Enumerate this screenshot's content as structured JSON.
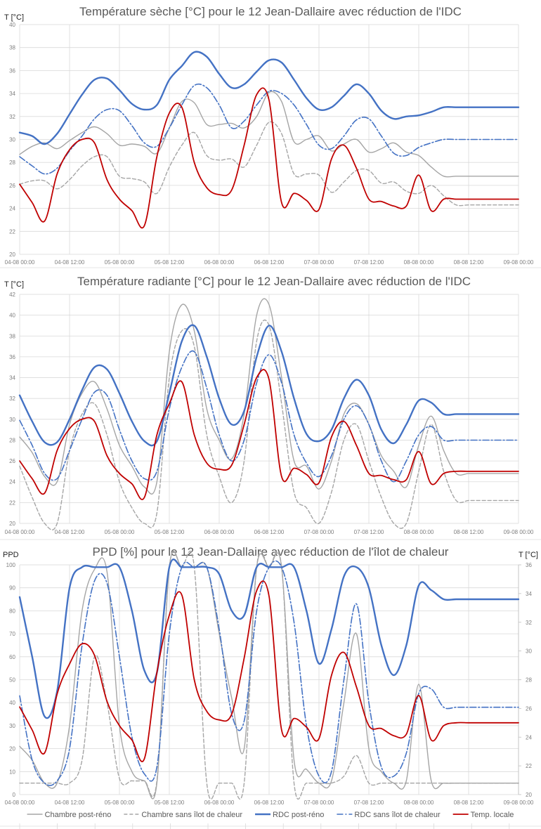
{
  "chart_data": [
    {
      "type": "line",
      "title": "Température sèche [°C] pour le 12 Jean-Dallaire avec réduction de l'IDC",
      "ylabel": "T [°C]",
      "xlabel": "",
      "ylim": [
        20,
        40
      ],
      "yticks": [
        "20",
        "22",
        "24",
        "26",
        "28",
        "30",
        "32",
        "34",
        "36",
        "38",
        "40"
      ],
      "xlim_hours": [
        0,
        120
      ],
      "xticks": [
        "04-08 00:00",
        "04-08 12:00",
        "05-08 00:00",
        "05-08 12:00",
        "06-08 00:00",
        "06-08 12:00",
        "07-08 00:00",
        "07-08 12:00",
        "08-08 00:00",
        "08-08 12:00",
        "09-08 00:00"
      ],
      "grid": true,
      "x_hours": [
        0,
        3,
        6,
        9,
        12,
        15,
        18,
        21,
        24,
        27,
        30,
        33,
        36,
        39,
        42,
        45,
        48,
        51,
        54,
        57,
        60,
        63,
        66,
        69,
        72,
        75,
        78,
        81,
        84,
        87,
        90,
        93,
        96,
        99,
        102,
        105,
        108,
        111,
        114,
        117,
        120
      ],
      "series": [
        {
          "name": "Chambre post-réno",
          "style": "solid-thin",
          "color": "#a5a5a5",
          "values": [
            28.7,
            29.4,
            29.7,
            29.2,
            29.9,
            30.6,
            31.1,
            30.5,
            29.5,
            29.6,
            29.4,
            28.8,
            31.0,
            33.3,
            33.2,
            31.3,
            31.3,
            31.4,
            31.0,
            32.0,
            34.1,
            33.3,
            29.8,
            30.0,
            30.3,
            29.0,
            29.6,
            30.0,
            28.9,
            29.2,
            29.7,
            28.9,
            28.6,
            27.6,
            26.8,
            26.8,
            26.8,
            26.8,
            26.8,
            26.8,
            26.8
          ]
        },
        {
          "name": "Chambre sans îlot de chaleur",
          "style": "dashed",
          "color": "#a5a5a5",
          "values": [
            26.1,
            26.4,
            26.4,
            25.7,
            26.5,
            27.7,
            28.5,
            28.5,
            26.8,
            26.6,
            26.3,
            25.3,
            27.6,
            29.5,
            30.6,
            28.6,
            28.2,
            28.3,
            27.6,
            29.5,
            31.5,
            30.5,
            27.0,
            27.0,
            26.9,
            25.4,
            26.3,
            27.3,
            27.3,
            26.2,
            26.3,
            25.5,
            25.3,
            26.0,
            25.1,
            24.3,
            24.3,
            24.3,
            24.3,
            24.3,
            24.3
          ]
        },
        {
          "name": "RDC post-réno",
          "style": "solid-thick",
          "color": "#4472c4",
          "values": [
            30.6,
            30.3,
            29.6,
            30.5,
            32.2,
            33.9,
            35.2,
            35.3,
            34.3,
            33.1,
            32.6,
            33.0,
            35.2,
            36.4,
            37.6,
            37.2,
            35.7,
            34.5,
            34.8,
            35.9,
            36.9,
            36.7,
            35.2,
            33.6,
            32.6,
            32.8,
            33.8,
            34.8,
            34.0,
            32.5,
            31.8,
            32.0,
            32.1,
            32.4,
            32.8,
            32.8,
            32.8,
            32.8,
            32.8,
            32.8,
            32.8
          ]
        },
        {
          "name": "RDC sans îlot de chaleur",
          "style": "dash-dot",
          "color": "#4472c4",
          "values": [
            28.5,
            27.7,
            27.0,
            27.5,
            29.0,
            30.3,
            31.8,
            32.6,
            32.5,
            31.2,
            29.7,
            29.4,
            31.0,
            33.0,
            34.7,
            34.5,
            33.0,
            31.0,
            31.6,
            33.0,
            34.2,
            34.0,
            33.0,
            31.3,
            29.5,
            29.2,
            30.3,
            31.7,
            31.8,
            30.3,
            28.8,
            28.6,
            29.3,
            29.7,
            30.0,
            30.0,
            30.0,
            30.0,
            30.0,
            30.0,
            30.0
          ]
        },
        {
          "name": "Temp. locale",
          "style": "solid",
          "color": "#c00000",
          "values": [
            26.1,
            24.5,
            22.9,
            27.0,
            29.1,
            30.0,
            29.7,
            26.5,
            24.8,
            23.8,
            22.5,
            28.5,
            32.3,
            32.8,
            28.0,
            25.8,
            25.2,
            25.6,
            29.5,
            33.9,
            33.4,
            24.5,
            25.3,
            24.7,
            23.9,
            28.3,
            29.5,
            27.5,
            24.8,
            24.6,
            24.2,
            24.2,
            26.9,
            23.8,
            24.8,
            24.8,
            24.8,
            24.8,
            24.8,
            24.8,
            24.8
          ]
        }
      ]
    },
    {
      "type": "line",
      "title": "Température radiante [°C] pour le 12 Jean-Dallaire avec réduction de l'IDC",
      "ylabel": "T [°C]",
      "xlabel": "",
      "ylim": [
        20,
        42
      ],
      "yticks": [
        "20",
        "22",
        "24",
        "26",
        "28",
        "30",
        "32",
        "34",
        "36",
        "38",
        "40",
        "42"
      ],
      "xlim_hours": [
        0,
        120
      ],
      "xticks": [
        "04-08 00:00",
        "04-08 12:00",
        "05-08 00:00",
        "05-08 12:00",
        "06-08 00:00",
        "06-08 12:00",
        "07-08 00:00",
        "07-08 12:00",
        "08-08 00:00",
        "08-08 12:00",
        "09-08 00:00"
      ],
      "grid": true,
      "x_hours": [
        0,
        3,
        6,
        9,
        12,
        15,
        18,
        21,
        24,
        27,
        30,
        33,
        36,
        39,
        42,
        45,
        48,
        51,
        54,
        57,
        60,
        63,
        66,
        69,
        72,
        75,
        78,
        81,
        84,
        87,
        90,
        93,
        96,
        99,
        102,
        105,
        108,
        111,
        114,
        117,
        120
      ],
      "series": [
        {
          "name": "Chambre post-réno",
          "style": "solid-thin",
          "color": "#a5a5a5",
          "values": [
            28.3,
            26.8,
            24.5,
            24.0,
            29.5,
            32.5,
            33.6,
            31.0,
            27.5,
            25.5,
            23.5,
            24.0,
            36.5,
            41.0,
            38.5,
            31.0,
            28.0,
            26.2,
            30.5,
            40.0,
            41.0,
            34.0,
            26.0,
            25.5,
            23.3,
            26.0,
            30.5,
            31.5,
            29.5,
            26.5,
            25.0,
            23.5,
            27.5,
            30.3,
            27.0,
            24.8,
            24.8,
            24.8,
            24.8,
            24.8,
            24.8
          ]
        },
        {
          "name": "Chambre sans îlot de chaleur",
          "style": "dashed",
          "color": "#a5a5a5",
          "values": [
            25.5,
            22.5,
            19.5,
            19.8,
            27.0,
            30.5,
            31.5,
            28.5,
            24.0,
            21.5,
            19.5,
            21.0,
            34.0,
            38.5,
            37.0,
            28.5,
            24.5,
            22.0,
            26.0,
            37.5,
            39.0,
            31.5,
            23.0,
            21.5,
            19.5,
            23.0,
            28.0,
            29.5,
            26.0,
            22.5,
            20.0,
            19.5,
            25.0,
            29.5,
            25.0,
            22.2,
            22.2,
            22.2,
            22.2,
            22.2,
            22.2
          ]
        },
        {
          "name": "RDC post-réno",
          "style": "solid-thick",
          "color": "#4472c4",
          "values": [
            32.3,
            29.8,
            27.8,
            27.8,
            30.0,
            32.8,
            35.0,
            34.8,
            32.5,
            29.8,
            27.9,
            27.9,
            32.5,
            37.5,
            39.0,
            36.0,
            32.0,
            29.5,
            30.8,
            36.0,
            39.0,
            36.5,
            32.0,
            28.6,
            27.9,
            29.0,
            32.0,
            33.8,
            32.3,
            29.0,
            27.7,
            29.5,
            31.8,
            31.6,
            30.5,
            30.5,
            30.5,
            30.5,
            30.5,
            30.5,
            30.5
          ]
        },
        {
          "name": "RDC sans îlot de chaleur",
          "style": "dash-dot",
          "color": "#4472c4",
          "values": [
            29.9,
            27.5,
            24.8,
            24.3,
            27.0,
            30.0,
            32.6,
            32.3,
            29.0,
            26.0,
            24.3,
            25.0,
            31.0,
            35.0,
            36.5,
            33.0,
            28.5,
            26.0,
            28.0,
            33.5,
            36.2,
            33.5,
            28.5,
            25.8,
            24.5,
            26.5,
            30.0,
            31.3,
            29.5,
            26.0,
            24.0,
            26.0,
            28.5,
            29.3,
            28.0,
            28.0,
            28.0,
            28.0,
            28.0,
            28.0,
            28.0
          ]
        },
        {
          "name": "Temp. locale",
          "style": "solid",
          "color": "#c00000",
          "values": [
            26.0,
            24.3,
            22.9,
            27.0,
            29.1,
            30.0,
            29.8,
            26.5,
            24.8,
            23.8,
            22.5,
            28.5,
            31.5,
            33.6,
            28.5,
            25.8,
            25.2,
            25.6,
            29.5,
            34.0,
            33.8,
            24.5,
            25.3,
            24.7,
            23.9,
            28.3,
            29.8,
            27.5,
            24.8,
            24.6,
            24.2,
            24.2,
            26.9,
            23.8,
            24.8,
            25.0,
            25.0,
            25.0,
            25.0,
            25.0,
            25.0
          ]
        }
      ]
    },
    {
      "type": "line",
      "title": "PPD [%] pour le 12 Jean-Dallaire avec réduction de l'îlot de chaleur",
      "ylabel": "PPD",
      "ylabel_right": "T [°C]",
      "xlabel": "",
      "ylim": [
        0,
        100
      ],
      "ylim_right": [
        20,
        36
      ],
      "yticks": [
        "0",
        "10",
        "20",
        "30",
        "40",
        "50",
        "60",
        "70",
        "80",
        "90",
        "100"
      ],
      "yticks_right": [
        "20",
        "22",
        "24",
        "26",
        "28",
        "30",
        "32",
        "34",
        "36"
      ],
      "xlim_hours": [
        0,
        120
      ],
      "xticks": [
        "04-08 00:00",
        "04-08 12:00",
        "05-08 00:00",
        "05-08 12:00",
        "06-08 00:00",
        "06-08 12:00",
        "07-08 00:00",
        "07-08 12:00",
        "08-08 00:00",
        "08-08 12:00",
        "09-08 00:00"
      ],
      "grid": true,
      "x_hours": [
        0,
        3,
        6,
        9,
        12,
        15,
        18,
        21,
        24,
        27,
        30,
        33,
        36,
        39,
        42,
        45,
        48,
        51,
        54,
        57,
        60,
        63,
        66,
        69,
        72,
        75,
        78,
        81,
        84,
        87,
        90,
        93,
        96,
        99,
        102,
        105,
        108,
        111,
        114,
        117,
        120
      ],
      "series": [
        {
          "name": "Chambre post-réno",
          "axis": "left",
          "style": "solid-thin",
          "color": "#a5a5a5",
          "values": [
            21,
            15,
            5,
            5,
            30,
            80,
            98,
            97,
            30,
            10,
            6,
            5,
            99,
            99,
            99,
            99,
            70,
            42,
            20,
            99,
            99,
            99,
            15,
            11,
            5,
            6,
            40,
            70,
            20,
            10,
            5,
            6,
            48,
            6,
            5,
            5,
            5,
            5,
            5,
            5,
            5
          ]
        },
        {
          "name": "Chambre sans îlot de chaleur",
          "axis": "left",
          "style": "dashed",
          "color": "#a5a5a5",
          "values": [
            5,
            5,
            5,
            5,
            5,
            15,
            60,
            40,
            7,
            6,
            6,
            6,
            99,
            99,
            99,
            5,
            5,
            5,
            5,
            99,
            99,
            99,
            5,
            5,
            5,
            5,
            8,
            17,
            5,
            5,
            5,
            5,
            5,
            5,
            5,
            5,
            5,
            5,
            5,
            5,
            5
          ]
        },
        {
          "name": "RDC post-réno",
          "axis": "left",
          "style": "solid-thick",
          "color": "#4472c4",
          "values": [
            86,
            60,
            34,
            45,
            90,
            99,
            99,
            99,
            99,
            80,
            54,
            53,
            99,
            99,
            99,
            99,
            96,
            80,
            78,
            99,
            99,
            99,
            99,
            80,
            57,
            72,
            95,
            99,
            90,
            65,
            52,
            65,
            91,
            89,
            85,
            85,
            85,
            85,
            85,
            85,
            85
          ]
        },
        {
          "name": "RDC sans îlot de chaleur",
          "axis": "left",
          "style": "dash-dot",
          "color": "#4472c4",
          "values": [
            43,
            15,
            5,
            6,
            20,
            65,
            93,
            92,
            60,
            25,
            9,
            12,
            70,
            99,
            99,
            99,
            72,
            35,
            32,
            80,
            99,
            99,
            75,
            30,
            8,
            10,
            50,
            83,
            40,
            12,
            8,
            18,
            44,
            46,
            38,
            38,
            38,
            38,
            38,
            38,
            38
          ]
        },
        {
          "name": "Temp. locale",
          "axis": "right",
          "style": "solid",
          "color": "#c00000",
          "values": [
            26.1,
            24.5,
            22.9,
            27.0,
            29.1,
            30.5,
            29.7,
            26.5,
            24.8,
            23.8,
            22.5,
            28.5,
            32.5,
            33.9,
            28.0,
            25.8,
            25.2,
            25.6,
            29.5,
            34.2,
            33.8,
            24.5,
            25.3,
            24.7,
            23.9,
            28.3,
            29.9,
            27.5,
            24.8,
            24.6,
            24.1,
            24.2,
            26.9,
            23.8,
            24.8,
            25.0,
            25.0,
            25.0,
            25.0,
            25.0,
            25.0
          ]
        }
      ]
    }
  ],
  "legend": {
    "placement": "bottom",
    "items": [
      {
        "label": "Chambre post-réno",
        "style": "solid-thin",
        "color": "#a5a5a5"
      },
      {
        "label": "Chambre sans îlot de chaleur",
        "style": "dashed",
        "color": "#a5a5a5"
      },
      {
        "label": "RDC post-réno",
        "style": "solid-thick",
        "color": "#4472c4"
      },
      {
        "label": "RDC sans îlot de chaleur",
        "style": "dash-dot",
        "color": "#4472c4"
      },
      {
        "label": "Temp. locale",
        "style": "solid",
        "color": "#c00000"
      }
    ]
  }
}
